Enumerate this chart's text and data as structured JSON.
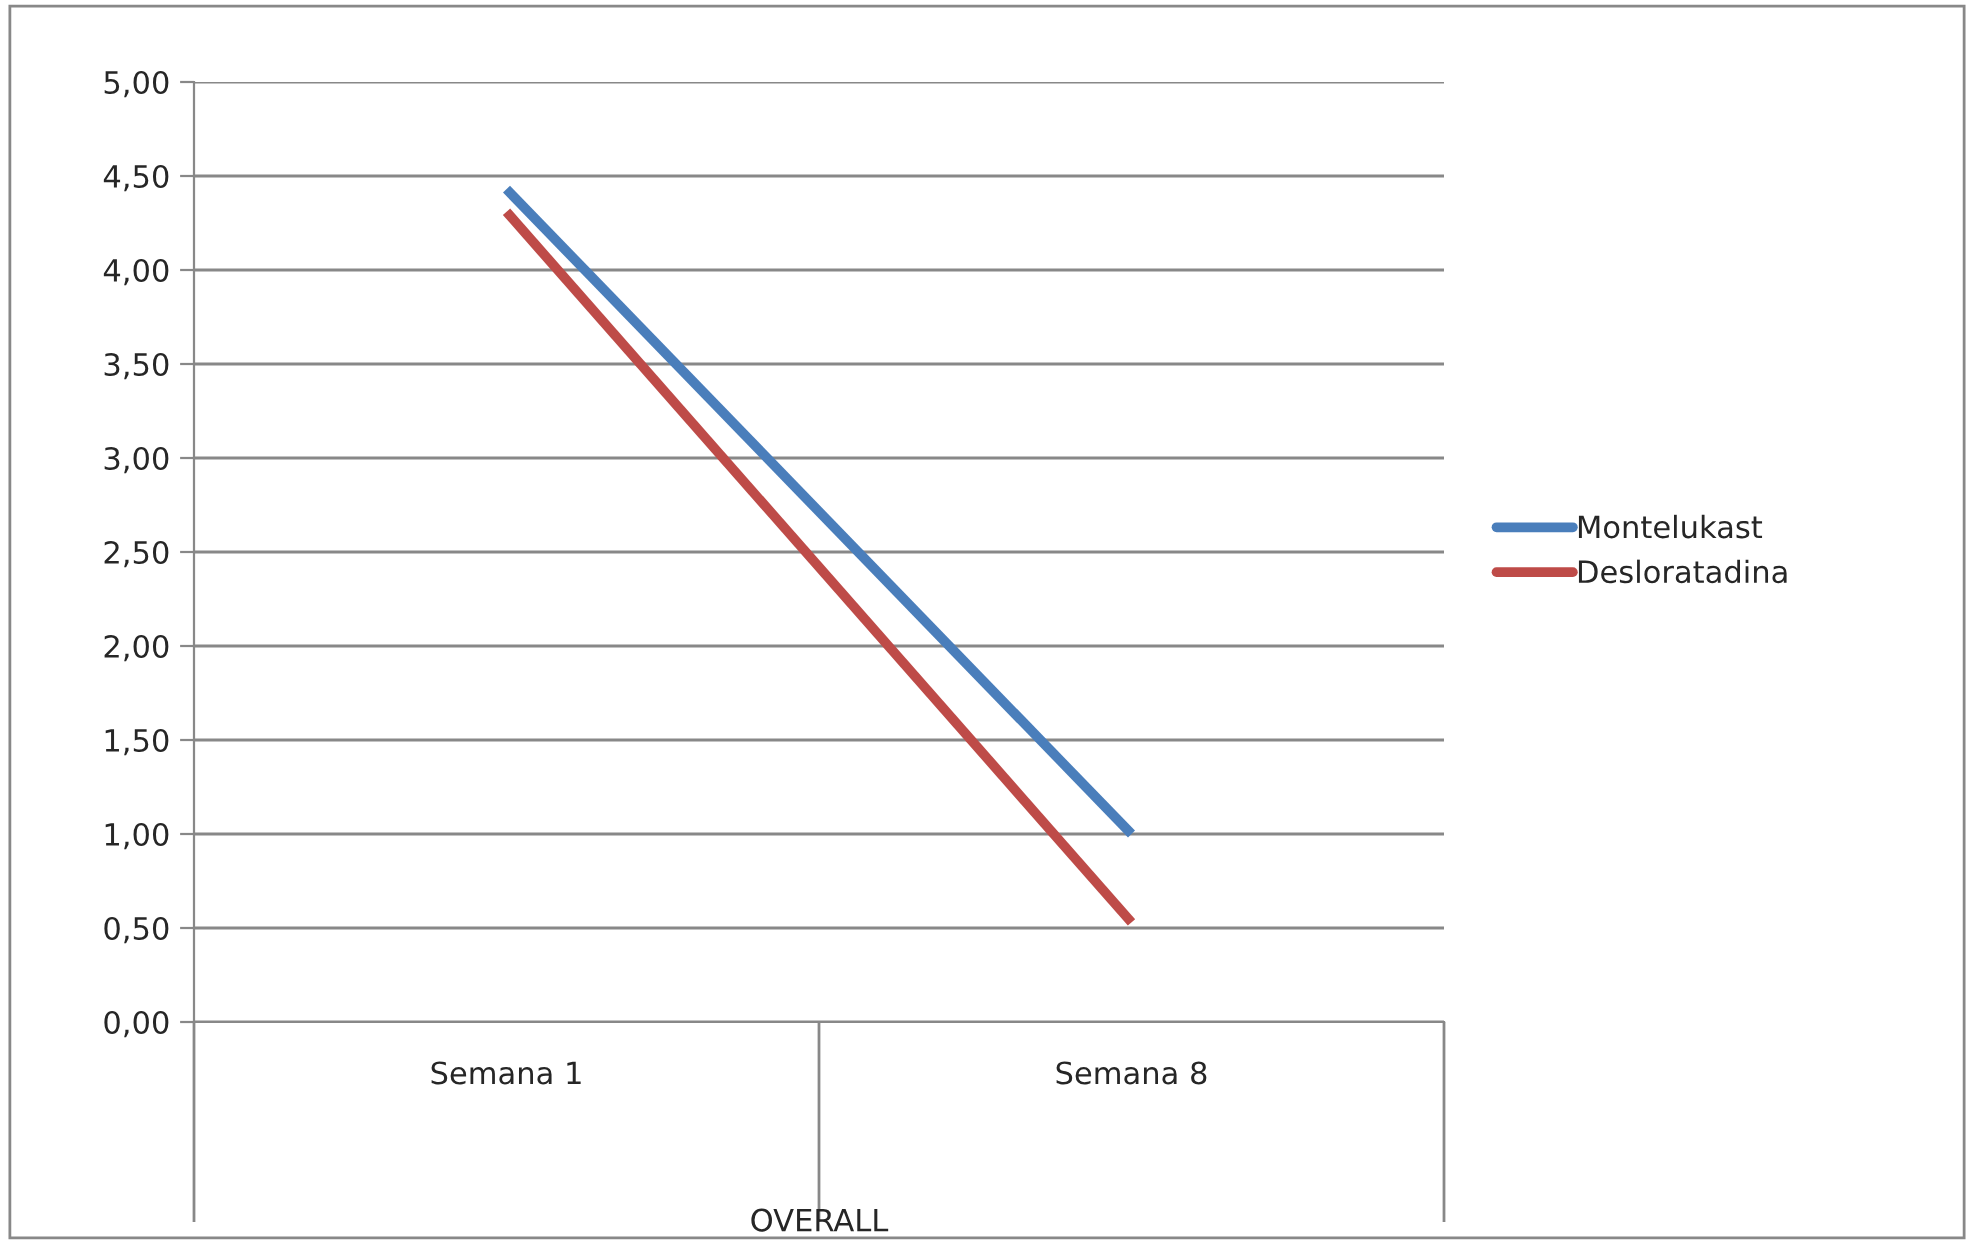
{
  "chart_data": {
    "type": "line",
    "categories": [
      "Semana 1",
      "Semana 8"
    ],
    "xlabel": "OVERALL",
    "series": [
      {
        "name": "Montelukast",
        "color": "#4a7ebb",
        "values": [
          4.43,
          1.0
        ]
      },
      {
        "name": "Desloratadina",
        "color": "#be4b48",
        "values": [
          4.31,
          0.53
        ]
      }
    ],
    "ylim": [
      0,
      5
    ],
    "yticks": [
      {
        "value": 0,
        "label": "0,00"
      },
      {
        "value": 0.5,
        "label": "0,50"
      },
      {
        "value": 1,
        "label": "1,00"
      },
      {
        "value": 1.5,
        "label": "1,50"
      },
      {
        "value": 2,
        "label": "2,00"
      },
      {
        "value": 2.5,
        "label": "2,50"
      },
      {
        "value": 3,
        "label": "3,00"
      },
      {
        "value": 3.5,
        "label": "3,50"
      },
      {
        "value": 4,
        "label": "4,00"
      },
      {
        "value": 4.5,
        "label": "4,50"
      },
      {
        "value": 5,
        "label": "5,00"
      }
    ],
    "grid": "y",
    "legend": "right",
    "marker": "none",
    "line_style": "solid"
  }
}
